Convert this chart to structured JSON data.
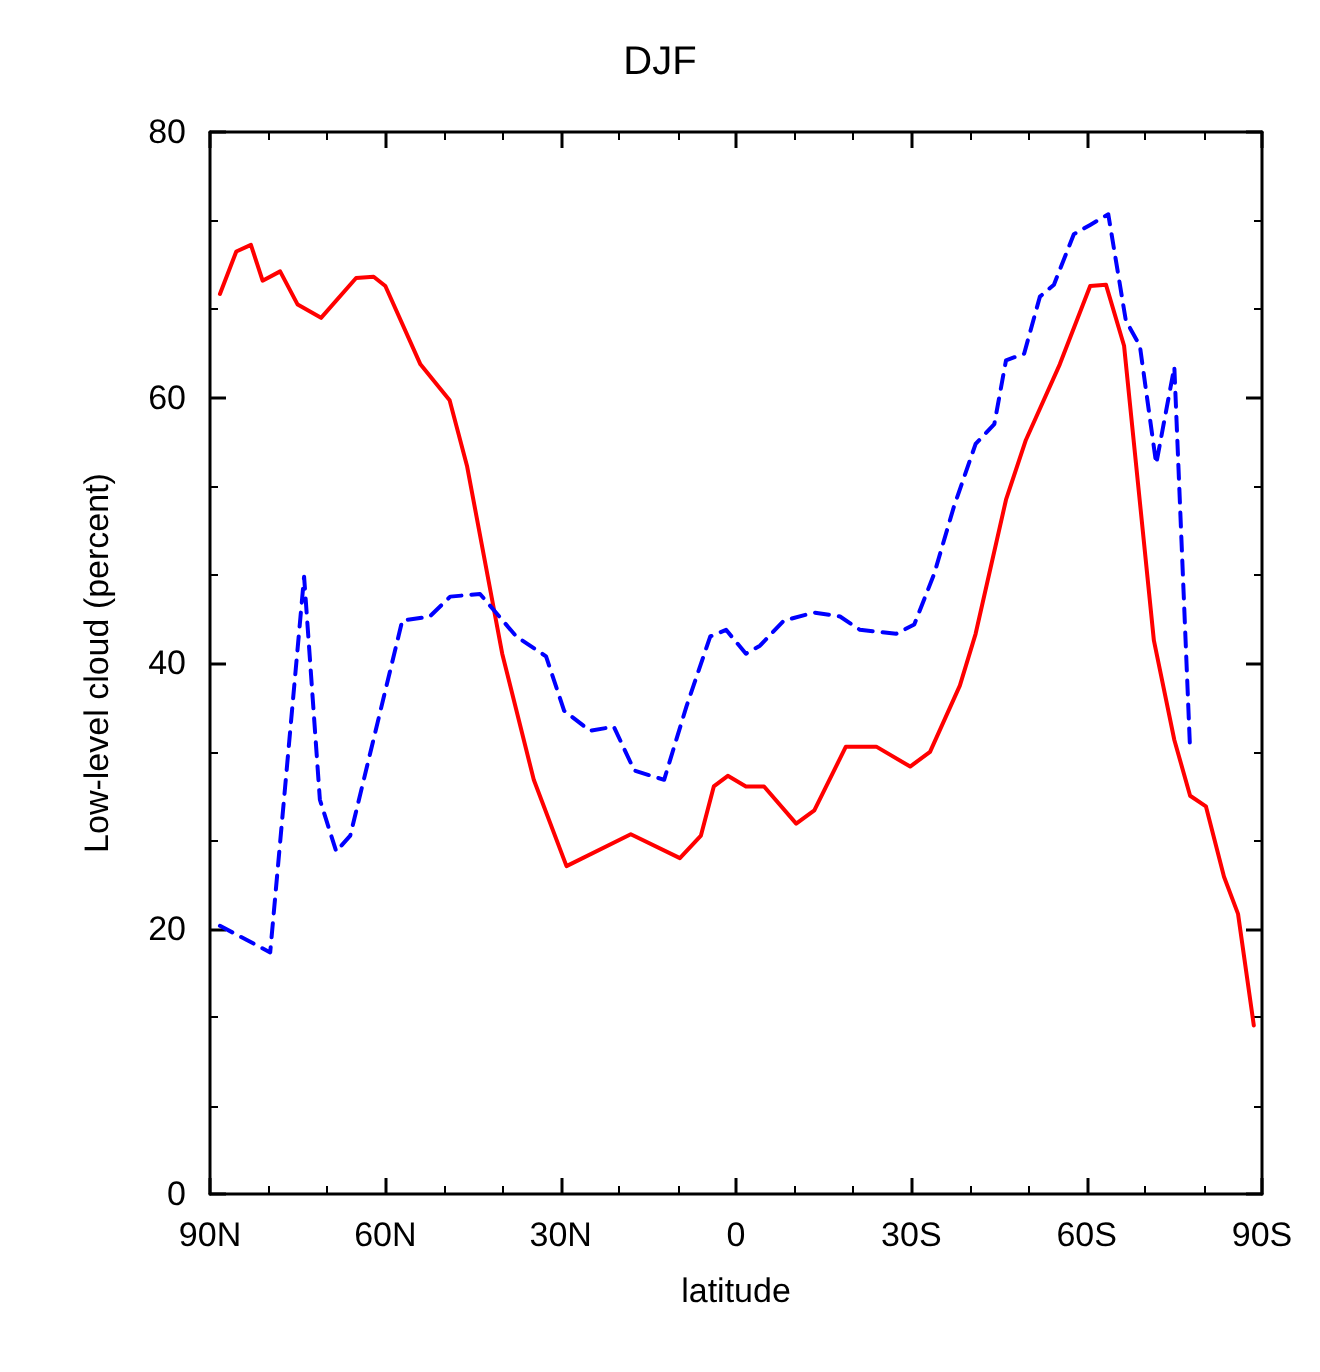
{
  "chart_data": {
    "type": "line",
    "title": "DJF",
    "xlabel": "latitude",
    "ylabel": "Low-level cloud (percent)",
    "xlim": [
      90,
      -90
    ],
    "ylim": [
      0,
      80
    ],
    "xticks": [
      {
        "value": 90,
        "label": "90N"
      },
      {
        "value": 60,
        "label": "60N"
      },
      {
        "value": 30,
        "label": "30N"
      },
      0,
      {
        "value": -30,
        "label": "30S"
      },
      {
        "value": -60,
        "label": "60S"
      },
      {
        "value": -90,
        "label": "90S"
      }
    ],
    "yticks": [
      0,
      20,
      40,
      60,
      80
    ],
    "grid": false,
    "marker": "none",
    "series": [
      {
        "color": "#ff0000",
        "line_style": "solid",
        "x": [
          88.3,
          85.5,
          83,
          81,
          78,
          75,
          71,
          65,
          62,
          60,
          54,
          49,
          46,
          40,
          34.6,
          29,
          18,
          9.6,
          6,
          3.8,
          1.4,
          -1.7,
          -4.8,
          -10.3,
          -13.4,
          -18.8,
          -24,
          -29.8,
          -33.2,
          -38.3,
          -41,
          -46.2,
          -49.6,
          -55.4,
          -60.6,
          -63.3,
          -66.4,
          -71.5,
          -75,
          -77.7,
          -80.4,
          -83.5,
          -85.9,
          -88.6
        ],
        "values": [
          67.8,
          71,
          71.5,
          68.8,
          69.5,
          67,
          66,
          69,
          69.1,
          68.4,
          62.5,
          59.8,
          54.8,
          40.7,
          31.2,
          24.7,
          27.1,
          25.3,
          27,
          30.7,
          31.5,
          30.7,
          30.7,
          27.9,
          28.9,
          33.7,
          33.7,
          32.2,
          33.3,
          38.3,
          42.2,
          52.3,
          56.8,
          62.5,
          68.4,
          68.5,
          63.9,
          41.7,
          34.2,
          30,
          29.2,
          23.9,
          21.1,
          12.7
        ]
      },
      {
        "color": "#0000ff",
        "line_style": "dashed",
        "x": [
          88.3,
          79.7,
          73.9,
          71.2,
          68.4,
          66,
          57.1,
          52.4,
          48.9,
          43.8,
          37.6,
          32.5,
          29.4,
          25,
          20.9,
          17.4,
          12.3,
          8.5,
          4.4,
          1.7,
          -1.7,
          -4.1,
          -8.2,
          -13.4,
          -17.8,
          -21.2,
          -27.4,
          -30.5,
          -33.9,
          -37.3,
          -41,
          -44.2,
          -46.2,
          -49.3,
          -52,
          -54.4,
          -57.8,
          -60.6,
          -63.7,
          -66.7,
          -69.1,
          -71.9,
          -75,
          -77.7
        ],
        "values": [
          20.2,
          18.2,
          46.5,
          29.7,
          25.8,
          27,
          43.2,
          43.5,
          45,
          45.2,
          42,
          40.5,
          36.4,
          34.9,
          35.2,
          31.9,
          31.2,
          36.7,
          42,
          42.5,
          40.7,
          41.3,
          43.2,
          43.8,
          43.5,
          42.5,
          42.2,
          42.9,
          46.7,
          51.8,
          56.5,
          58,
          62.8,
          63.3,
          67.6,
          68.5,
          72.3,
          73,
          73.8,
          65.8,
          63.9,
          55,
          62.3,
          33.4
        ]
      }
    ]
  }
}
